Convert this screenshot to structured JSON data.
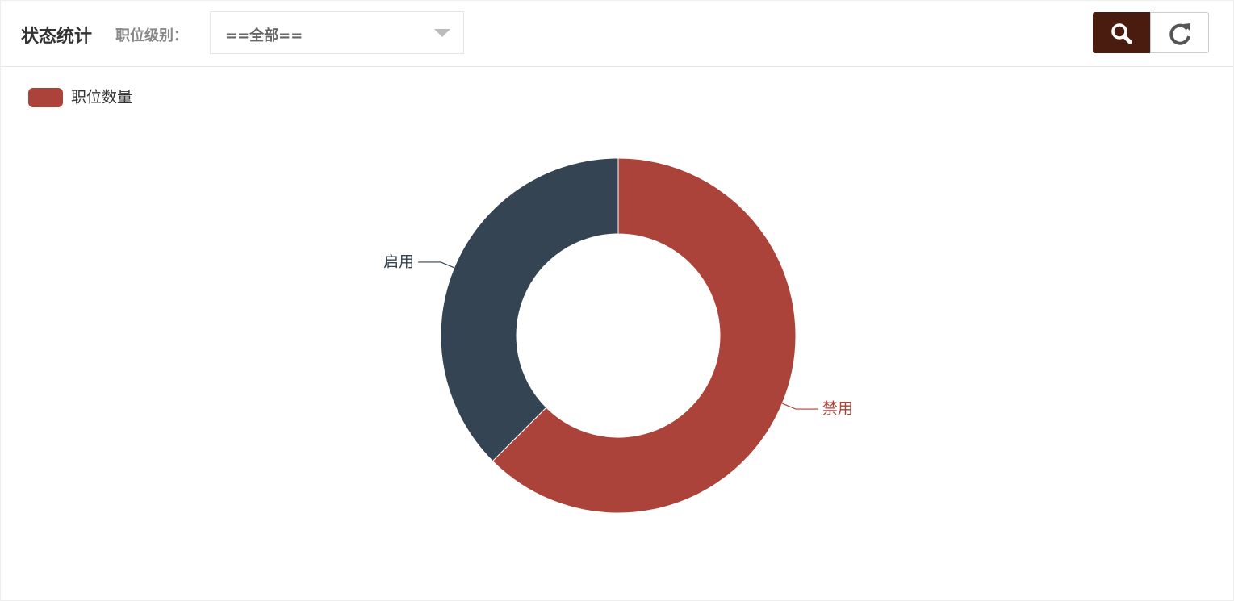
{
  "header": {
    "title": "状态统计",
    "filter_label": "职位级别：",
    "filter_value": "==全部=="
  },
  "chart_data": {
    "type": "donut",
    "series_name": "职位数量",
    "categories": [
      "禁用",
      "启用"
    ],
    "values": [
      5,
      3
    ],
    "colors": [
      "#ab433a",
      "#344453"
    ],
    "legend_color": "#ab433a"
  }
}
